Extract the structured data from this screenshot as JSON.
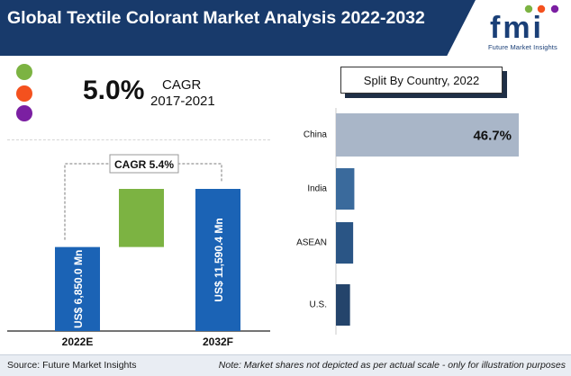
{
  "header": {
    "title": "Global Textile Colorant Market Analysis 2022-2032",
    "band_color": "#183a6b"
  },
  "logo": {
    "text": "fmi",
    "tagline": "Future Market Insights",
    "colors": [
      "#1a3f77",
      "#7cb342",
      "#f4511e",
      "#7b1fa2"
    ]
  },
  "cagr_panel": {
    "value": "5.0%",
    "label": "CAGR",
    "period": "2017-2021",
    "dot_colors": [
      "#7cb342",
      "#f4511e",
      "#7b1fa2"
    ]
  },
  "chart_data": [
    {
      "type": "bar",
      "subtype": "waterfall",
      "categories": [
        "2022E",
        "2032F"
      ],
      "values": [
        6850.0,
        11590.4
      ],
      "bar_labels": [
        "US$ 6,850.0 Mn",
        "US$ 11,590.4 Mn"
      ],
      "cagr_label": "CAGR 5.4%",
      "increment_color": "#7cb342",
      "bar_color": "#1b63b5"
    },
    {
      "type": "bar",
      "orientation": "horizontal",
      "title": "Split By Country, 2022",
      "categories": [
        "China",
        "India",
        "ASEAN",
        "U.S."
      ],
      "values": [
        46.7,
        4.7,
        4.4,
        3.6
      ],
      "value_labels": [
        "46.7%",
        "",
        "",
        ""
      ],
      "colors": [
        "#a9b6c8",
        "#3a6a9c",
        "#2a5585",
        "#24446b"
      ]
    }
  ],
  "footer": {
    "source": "Source: Future Market Insights",
    "note": "Note: Market shares not depicted as per actual scale - only for illustration purposes"
  }
}
